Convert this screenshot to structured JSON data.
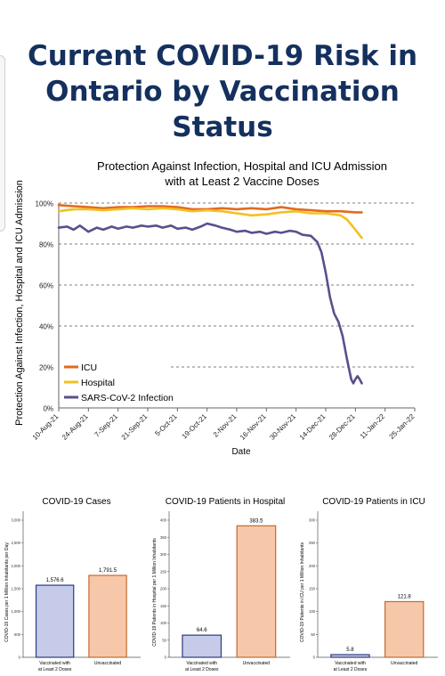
{
  "page": {
    "title_lines": [
      "Current COVID-19 Risk in",
      "Ontario by Vaccination",
      "Status"
    ],
    "colors": {
      "title": "#14305e",
      "icu": "#e36a1e",
      "hospital": "#f2c023",
      "infection": "#5d4e8c",
      "vaccinated_bar": "#c5cbe9",
      "unvaccinated_bar": "#f6c7a8"
    }
  },
  "chart_data": [
    {
      "type": "line",
      "title": "Protection Against Infection, Hospital and ICU Admission",
      "subtitle": "with at Least 2 Vaccine Doses",
      "xlabel": "Date",
      "ylabel": "Protection Against Infection, Hospital and ICU Admission",
      "x_ticks": [
        "10-Aug-21",
        "24-Aug-21",
        "7-Sep-21",
        "21-Sep-21",
        "5-Oct-21",
        "19-Oct-21",
        "2-Nov-21",
        "16-Nov-21",
        "30-Nov-21",
        "14-Dec-21",
        "28-Dec-21",
        "11-Jan-22",
        "25-Jan-22"
      ],
      "y_ticks": [
        "0%",
        "20%",
        "40%",
        "60%",
        "80%",
        "100%"
      ],
      "ylim": [
        0,
        100
      ],
      "grid": "dashed-horizontal",
      "legend_position": "bottom-left",
      "series": [
        {
          "name": "ICU",
          "color": "#e36a1e",
          "points": [
            [
              "10-Aug-21",
              99
            ],
            [
              "17-Aug-21",
              98.5
            ],
            [
              "24-Aug-21",
              98
            ],
            [
              "31-Aug-21",
              97.5
            ],
            [
              "7-Sep-21",
              98
            ],
            [
              "14-Sep-21",
              98
            ],
            [
              "21-Sep-21",
              98.5
            ],
            [
              "28-Sep-21",
              98.5
            ],
            [
              "5-Oct-21",
              98
            ],
            [
              "12-Oct-21",
              97
            ],
            [
              "19-Oct-21",
              97
            ],
            [
              "26-Oct-21",
              97.5
            ],
            [
              "2-Nov-21",
              97
            ],
            [
              "9-Nov-21",
              97.5
            ],
            [
              "16-Nov-21",
              97
            ],
            [
              "23-Nov-21",
              98
            ],
            [
              "30-Nov-21",
              97
            ],
            [
              "7-Dec-21",
              96.5
            ],
            [
              "14-Dec-21",
              96
            ],
            [
              "21-Dec-21",
              96
            ],
            [
              "28-Dec-21",
              95.5
            ],
            [
              "31-Dec-21",
              95.5
            ]
          ]
        },
        {
          "name": "Hospital",
          "color": "#f2c023",
          "points": [
            [
              "10-Aug-21",
              96
            ],
            [
              "17-Aug-21",
              97
            ],
            [
              "24-Aug-21",
              97
            ],
            [
              "31-Aug-21",
              96.5
            ],
            [
              "7-Sep-21",
              97
            ],
            [
              "14-Sep-21",
              97.5
            ],
            [
              "21-Sep-21",
              97
            ],
            [
              "28-Sep-21",
              97.5
            ],
            [
              "5-Oct-21",
              97
            ],
            [
              "12-Oct-21",
              96
            ],
            [
              "19-Oct-21",
              96.5
            ],
            [
              "26-Oct-21",
              96
            ],
            [
              "2-Nov-21",
              95
            ],
            [
              "9-Nov-21",
              94
            ],
            [
              "16-Nov-21",
              94.5
            ],
            [
              "23-Nov-21",
              95.5
            ],
            [
              "30-Nov-21",
              96
            ],
            [
              "7-Dec-21",
              95
            ],
            [
              "14-Dec-21",
              95
            ],
            [
              "21-Dec-21",
              94
            ],
            [
              "24-Dec-21",
              92
            ],
            [
              "28-Dec-21",
              87
            ],
            [
              "31-Dec-21",
              83
            ]
          ]
        },
        {
          "name": "SARS-CoV-2 Infection",
          "color": "#5d4e8c",
          "points": [
            [
              "10-Aug-21",
              88
            ],
            [
              "14-Aug-21",
              88.5
            ],
            [
              "17-Aug-21",
              87
            ],
            [
              "20-Aug-21",
              89
            ],
            [
              "24-Aug-21",
              86
            ],
            [
              "28-Aug-21",
              88
            ],
            [
              "31-Aug-21",
              87
            ],
            [
              "4-Sep-21",
              88.5
            ],
            [
              "7-Sep-21",
              87.5
            ],
            [
              "11-Sep-21",
              88.5
            ],
            [
              "14-Sep-21",
              88
            ],
            [
              "18-Sep-21",
              89
            ],
            [
              "21-Sep-21",
              88.5
            ],
            [
              "25-Sep-21",
              89
            ],
            [
              "28-Sep-21",
              88
            ],
            [
              "2-Oct-21",
              89
            ],
            [
              "5-Oct-21",
              87.5
            ],
            [
              "9-Oct-21",
              88
            ],
            [
              "12-Oct-21",
              87
            ],
            [
              "16-Oct-21",
              88.5
            ],
            [
              "19-Oct-21",
              90
            ],
            [
              "23-Oct-21",
              89
            ],
            [
              "26-Oct-21",
              88
            ],
            [
              "30-Oct-21",
              87
            ],
            [
              "2-Nov-21",
              86
            ],
            [
              "6-Nov-21",
              86.5
            ],
            [
              "9-Nov-21",
              85.5
            ],
            [
              "13-Nov-21",
              86
            ],
            [
              "16-Nov-21",
              85
            ],
            [
              "20-Nov-21",
              86
            ],
            [
              "23-Nov-21",
              85.5
            ],
            [
              "27-Nov-21",
              86.5
            ],
            [
              "30-Nov-21",
              86
            ],
            [
              "3-Dec-21",
              84.5
            ],
            [
              "7-Dec-21",
              84
            ],
            [
              "10-Dec-21",
              81
            ],
            [
              "12-Dec-21",
              76
            ],
            [
              "14-Dec-21",
              66
            ],
            [
              "16-Dec-21",
              54
            ],
            [
              "18-Dec-21",
              46
            ],
            [
              "20-Dec-21",
              42
            ],
            [
              "22-Dec-21",
              35
            ],
            [
              "24-Dec-21",
              24
            ],
            [
              "26-Dec-21",
              14
            ],
            [
              "27-Dec-21",
              12
            ],
            [
              "28-Dec-21",
              14
            ],
            [
              "29-Dec-21",
              15.5
            ],
            [
              "30-Dec-21",
              14
            ],
            [
              "31-Dec-21",
              12
            ]
          ]
        }
      ]
    },
    {
      "type": "bar",
      "title": "COVID-19 Cases",
      "ylabel": "COVID-19 Cases per 1 Million Inhabitants per Day",
      "y_ticks": [
        "0",
        "500",
        "1,000",
        "1,500",
        "2,000",
        "2,500",
        "3,000"
      ],
      "ylim": [
        0,
        3000
      ],
      "categories": [
        "Vaccinated with at Least 2 Doses",
        "Unvaccinated"
      ],
      "values": [
        1576.6,
        1791.5
      ],
      "value_labels": [
        "1,576.6",
        "1,791.5"
      ]
    },
    {
      "type": "bar",
      "title": "COVID-19 Patients in Hospital",
      "ylabel": "COVID-19 Patients in Hospital per 1 Million Inhabitants",
      "y_ticks": [
        "0",
        "50",
        "100",
        "150",
        "200",
        "250",
        "300",
        "350",
        "400"
      ],
      "ylim": [
        0,
        400
      ],
      "categories": [
        "Vaccinated with at Least 2 Doses",
        "Unvaccinated"
      ],
      "values": [
        64.6,
        383.5
      ],
      "value_labels": [
        "64.6",
        "383.5"
      ]
    },
    {
      "type": "bar",
      "title": "COVID-19 Patients in ICU",
      "ylabel": "COVID-19 Patients in ICU per 1 Million Inhabitants",
      "y_ticks": [
        "0",
        "50",
        "100",
        "150",
        "200",
        "250",
        "300"
      ],
      "ylim": [
        0,
        300
      ],
      "categories": [
        "Vaccinated with at Least 2 Doses",
        "Unvaccinated"
      ],
      "values": [
        5.8,
        121.8
      ],
      "value_labels": [
        "5.8",
        "121.8"
      ]
    }
  ]
}
